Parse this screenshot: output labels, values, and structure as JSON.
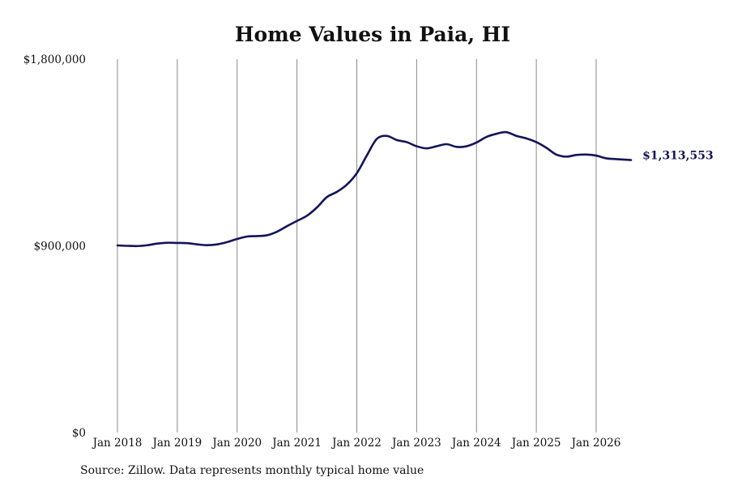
{
  "chart_data": {
    "type": "line",
    "title": "Home Values in Paia, HI",
    "xlabel": "",
    "ylabel": "",
    "ylim": [
      0,
      1800000
    ],
    "xlim": [
      "2018-01",
      "2026-08"
    ],
    "y_ticks": [
      "$0",
      "$900,000",
      "$1,800,000"
    ],
    "y_tick_values": [
      0,
      900000,
      1800000
    ],
    "x_ticks": [
      "Jan 2018",
      "Jan 2019",
      "Jan 2020",
      "Jan 2021",
      "Jan 2022",
      "Jan 2023",
      "Jan 2024",
      "Jan 2025",
      "Jan 2026"
    ],
    "x_tick_values": [
      "2018-01",
      "2019-01",
      "2020-01",
      "2021-01",
      "2022-01",
      "2023-01",
      "2024-01",
      "2025-01",
      "2026-01"
    ],
    "grid": "vertical",
    "line_color": "#14145a",
    "end_label": "$1,313,553",
    "series": [
      {
        "x": [
          "2018-01",
          "2018-03",
          "2018-05",
          "2018-07",
          "2018-09",
          "2018-11",
          "2019-01",
          "2019-03",
          "2019-05",
          "2019-07",
          "2019-09",
          "2019-11",
          "2020-01",
          "2020-03",
          "2020-05",
          "2020-07",
          "2020-09",
          "2020-11",
          "2021-01",
          "2021-03",
          "2021-05",
          "2021-07",
          "2021-09",
          "2021-11",
          "2022-01",
          "2022-03",
          "2022-05",
          "2022-07",
          "2022-09",
          "2022-11",
          "2023-01",
          "2023-03",
          "2023-05",
          "2023-07",
          "2023-09",
          "2023-11",
          "2024-01",
          "2024-03",
          "2024-05",
          "2024-07",
          "2024-09",
          "2024-11",
          "2025-01",
          "2025-03",
          "2025-05",
          "2025-07",
          "2025-09",
          "2025-11",
          "2026-01",
          "2026-03",
          "2026-05",
          "2026-08"
        ],
        "values": [
          902000,
          900000,
          899000,
          903000,
          911000,
          915000,
          914000,
          913000,
          907000,
          903000,
          907000,
          918000,
          933000,
          945000,
          947000,
          951000,
          968000,
          995000,
          1020000,
          1045000,
          1085000,
          1135000,
          1160000,
          1195000,
          1250000,
          1335000,
          1415000,
          1430000,
          1410000,
          1400000,
          1380000,
          1370000,
          1380000,
          1390000,
          1377000,
          1380000,
          1398000,
          1425000,
          1440000,
          1448000,
          1430000,
          1418000,
          1400000,
          1373000,
          1340000,
          1330000,
          1338000,
          1340000,
          1335000,
          1322000,
          1318000,
          1313553
        ]
      }
    ]
  },
  "source_note": "Source: Zillow. Data represents monthly typical home value"
}
